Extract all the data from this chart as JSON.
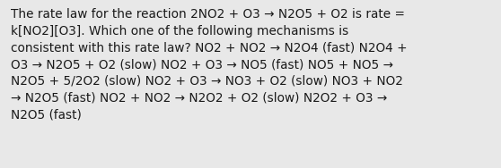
{
  "text": "The rate law for the reaction 2NO2 + O3 → N2O5 + O2 is rate =\nk[NO2][O3]. Which one of the following mechanisms is\nconsistent with this rate law? NO2 + NO2 → N2O4 (fast) N2O4 +\nO3 → N2O5 + O2 (slow) NO2 + O3 → NO5 (fast) NO5 + NO5 →\nN2O5 + 5/2O2 (slow) NO2 + O3 → NO3 + O2 (slow) NO3 + NO2\n→ N2O5 (fast) NO2 + NO2 → N2O2 + O2 (slow) N2O2 + O3 →\nN2O5 (fast)",
  "background_color": "#e8e8e8",
  "text_color": "#1a1a1a",
  "font_size": 9.8,
  "font_family": "DejaVu Sans",
  "fig_width": 5.58,
  "fig_height": 1.88,
  "dpi": 100
}
